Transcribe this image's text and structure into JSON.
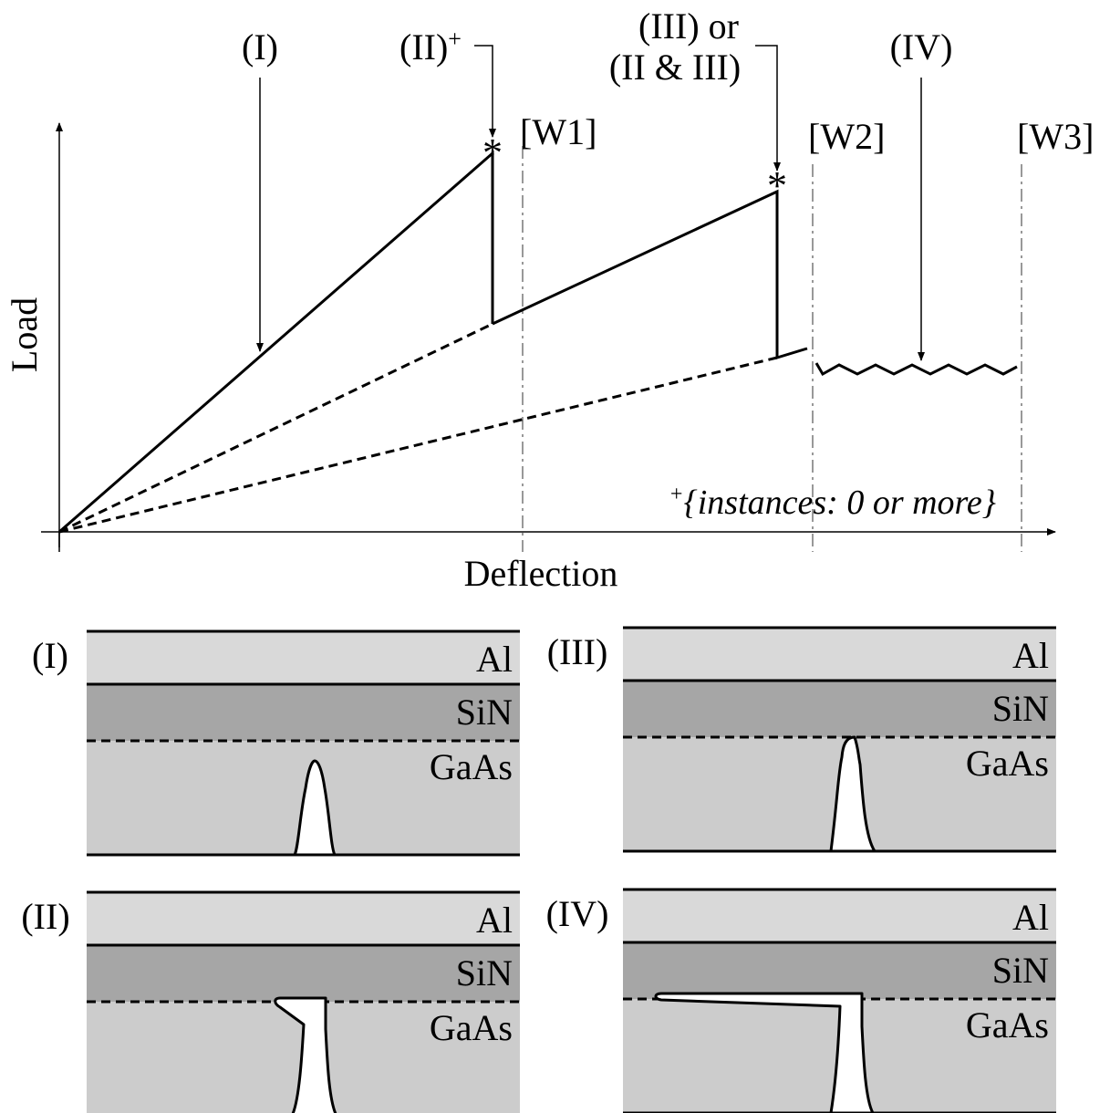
{
  "plot": {
    "y_label": "Load",
    "x_label": "Deflection",
    "annotations": [
      {
        "text": "(I)"
      },
      {
        "text": "(II)",
        "sup": "+"
      },
      {
        "text": "(III) or",
        "line2": "(II & III)"
      },
      {
        "text": "(IV)"
      }
    ],
    "windows": [
      "[W1]",
      "[W2]",
      "[W3]"
    ],
    "note": {
      "sup": "+",
      "text": "{instances: 0 or more}"
    }
  },
  "panels": [
    {
      "label": "(I)",
      "layers": [
        "Al",
        "SiN",
        "GaAs"
      ]
    },
    {
      "label": "(III)",
      "layers": [
        "Al",
        "SiN",
        "GaAs"
      ]
    },
    {
      "label": "(II)",
      "layers": [
        "Al",
        "SiN",
        "GaAs"
      ]
    },
    {
      "label": "(IV)",
      "layers": [
        "Al",
        "SiN",
        "GaAs"
      ]
    }
  ]
}
